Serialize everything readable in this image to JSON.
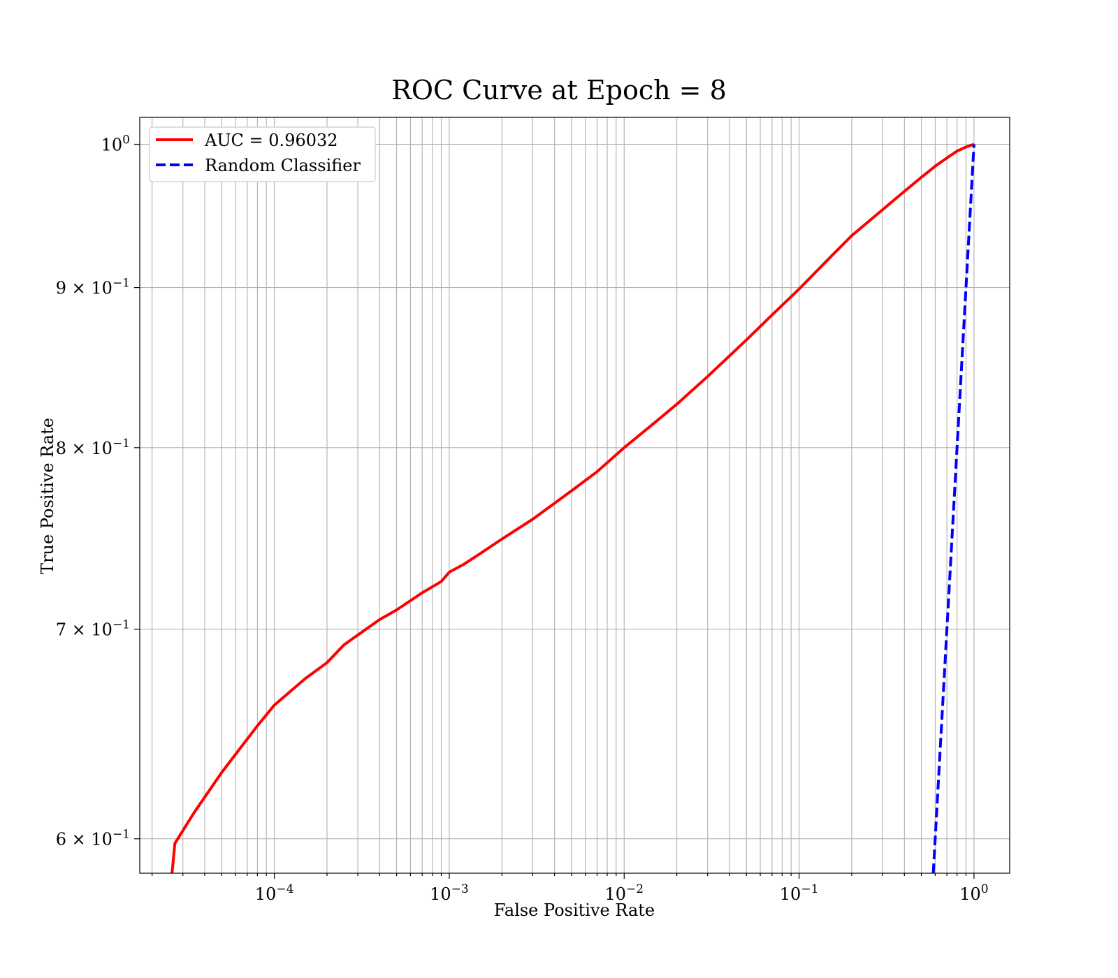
{
  "chart_data": {
    "type": "line",
    "title": "ROC Curve at Epoch = 8",
    "xlabel": "False Positive Rate",
    "ylabel": "True Positive Rate",
    "xscale": "log",
    "yscale": "log",
    "xlim": [
      1.7e-05,
      1.6
    ],
    "ylim": [
      0.585,
      1.02
    ],
    "grid": "both major and minor",
    "legend_position": "upper-left",
    "x_ticks": [
      {
        "value": 0.0001,
        "base": "10",
        "exp": "−4"
      },
      {
        "value": 0.001,
        "base": "10",
        "exp": "−3"
      },
      {
        "value": 0.01,
        "base": "10",
        "exp": "−2"
      },
      {
        "value": 0.1,
        "base": "10",
        "exp": "−1"
      },
      {
        "value": 1,
        "base": "10",
        "exp": "0"
      }
    ],
    "y_ticks": [
      {
        "value": 0.6,
        "base": "6 × 10",
        "exp": "−1"
      },
      {
        "value": 0.7,
        "base": "7 × 10",
        "exp": "−1"
      },
      {
        "value": 0.8,
        "base": "8 × 10",
        "exp": "−1"
      },
      {
        "value": 0.9,
        "base": "9 × 10",
        "exp": "−1"
      },
      {
        "value": 1.0,
        "base": "10",
        "exp": "0"
      }
    ],
    "series": [
      {
        "name": "AUC = 0.96032",
        "color": "#ff0000",
        "style": "solid",
        "x": [
          2.6e-05,
          2.7e-05,
          3.5e-05,
          5e-05,
          8e-05,
          0.0001,
          0.00015,
          0.0002,
          0.00025,
          0.0003,
          0.0004,
          0.0005,
          0.0007,
          0.0009,
          0.001,
          0.0012,
          0.0015,
          0.002,
          0.003,
          0.005,
          0.007,
          0.01,
          0.015,
          0.02,
          0.03,
          0.05,
          0.07,
          0.1,
          0.15,
          0.2,
          0.3,
          0.4,
          0.5,
          0.6,
          0.7,
          0.8,
          0.9,
          1.0
        ],
        "y": [
          0.585,
          0.598,
          0.612,
          0.63,
          0.652,
          0.662,
          0.675,
          0.683,
          0.692,
          0.697,
          0.705,
          0.71,
          0.719,
          0.725,
          0.73,
          0.734,
          0.74,
          0.748,
          0.759,
          0.775,
          0.786,
          0.8,
          0.815,
          0.826,
          0.843,
          0.866,
          0.882,
          0.899,
          0.92,
          0.935,
          0.953,
          0.966,
          0.976,
          0.984,
          0.99,
          0.995,
          0.998,
          1.0
        ]
      },
      {
        "name": "Random Classifier",
        "color": "#0000ff",
        "style": "dashed",
        "x": [
          0.585,
          1.0
        ],
        "y": [
          0.585,
          1.0
        ]
      }
    ]
  }
}
